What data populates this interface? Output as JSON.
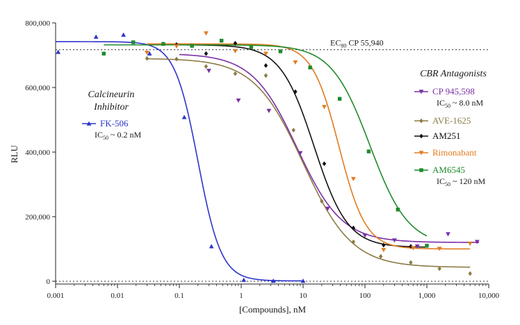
{
  "chart_data": {
    "type": "scatter",
    "xscale": "log",
    "xlabel": "[Compounds], nM",
    "ylabel": "RLU",
    "xlim": [
      0.001,
      10000
    ],
    "ylim": [
      0,
      800000
    ],
    "xticks": [
      {
        "value": 0.001,
        "label": "0.001"
      },
      {
        "value": 0.01,
        "label": "0.01"
      },
      {
        "value": 0.1,
        "label": "0.1"
      },
      {
        "value": 1,
        "label": "1"
      },
      {
        "value": 10,
        "label": "10"
      },
      {
        "value": 100,
        "label": "100"
      },
      {
        "value": 1000,
        "label": "1,000"
      },
      {
        "value": 10000,
        "label": "10,000"
      }
    ],
    "yticks": [
      {
        "value": 0,
        "label": "0"
      },
      {
        "value": 200000,
        "label": "200,000"
      },
      {
        "value": 400000,
        "label": "400,000"
      },
      {
        "value": 600000,
        "label": "600,000"
      },
      {
        "value": 800000,
        "label": "800,000"
      }
    ],
    "grid": false,
    "reference_lines": [
      {
        "y": 717000,
        "label_main": "EC",
        "label_sub": "80",
        "label_rest": " CP 55,940"
      },
      {
        "y": 0
      }
    ],
    "legend_groups": [
      {
        "title_lines": [
          "Calcineurin",
          "Inhibitor"
        ],
        "series": [
          "FK-506"
        ]
      },
      {
        "title_lines": [
          "CBR Antagonists"
        ],
        "series": [
          "CP 945,598",
          "AVE-1625",
          "AM251",
          "Rimonabant",
          "AM6545"
        ]
      }
    ],
    "series": [
      {
        "name": "FK-506",
        "color": "#2b35c9",
        "marker": "triangle-up",
        "ic50_note": {
          "prefix": "IC",
          "sub": "50",
          "text": " ~ 0.2 nM"
        },
        "fit": {
          "top": 742000,
          "bottom": 1000,
          "ec50": 0.2,
          "hill": 2.3,
          "xmin": 0.001,
          "xmax": 10
        },
        "x": [
          0.0011,
          0.0045,
          0.0125,
          0.033,
          0.12,
          0.33,
          1.1,
          3.3,
          10
        ],
        "y": [
          710000,
          757000,
          763000,
          705000,
          508000,
          108000,
          4000,
          1000,
          1000
        ]
      },
      {
        "name": "CP 945,598",
        "color": "#7b2fa6",
        "marker": "triangle-down",
        "ic50_note": {
          "prefix": "IC",
          "sub": "50",
          "text": " ~ 8.0 nM"
        },
        "fit": {
          "top": 705000,
          "bottom": 120000,
          "ec50": 8.0,
          "hill": 1.2,
          "xmin": 0.1,
          "xmax": 7000
        },
        "x": [
          0.3,
          0.9,
          2.8,
          9.0,
          25,
          100,
          300,
          700,
          2200,
          6500
        ],
        "y": [
          652000,
          560000,
          528000,
          397000,
          225000,
          142000,
          127000,
          108000,
          146000,
          122000
        ]
      },
      {
        "name": "AVE-1625",
        "color": "#8b7b45",
        "marker": "diamond",
        "fit": {
          "top": 690000,
          "bottom": 43000,
          "ec50": 10.0,
          "hill": 1.1,
          "xmin": 0.03,
          "xmax": 5000
        },
        "x": [
          0.03,
          0.09,
          0.27,
          0.8,
          2.5,
          7.0,
          20,
          65,
          180,
          550,
          1600,
          5000
        ],
        "y": [
          690000,
          688000,
          665000,
          643000,
          637000,
          468000,
          248000,
          122000,
          77000,
          58000,
          39000,
          24000
        ]
      },
      {
        "name": "AM251",
        "color": "#111111",
        "marker": "diamond",
        "fit": {
          "top": 732000,
          "bottom": 105000,
          "ec50": 15.0,
          "hill": 1.6,
          "xmin": 0.1,
          "xmax": 1000
        },
        "x": [
          0.09,
          0.27,
          0.8,
          2.5,
          7.5,
          22,
          65,
          200,
          550
        ],
        "y": [
          733000,
          705000,
          737000,
          668000,
          587000,
          364000,
          165000,
          112000,
          108000
        ]
      },
      {
        "name": "Rimonabant",
        "color": "#e07b1f",
        "marker": "triangle-down",
        "fit": {
          "top": 735000,
          "bottom": 100000,
          "ec50": 38.0,
          "hill": 2.0,
          "xmin": 0.03,
          "xmax": 5000
        },
        "x": [
          0.03,
          0.09,
          0.27,
          0.8,
          2.5,
          7.5,
          22,
          65,
          200,
          600,
          1600,
          5000
        ],
        "y": [
          708000,
          728000,
          768000,
          713000,
          705000,
          678000,
          540000,
          317000,
          97000,
          103000,
          101000,
          117000
        ]
      },
      {
        "name": "AM6545",
        "color": "#1f8a2c",
        "marker": "square",
        "ic50_note": {
          "prefix": "IC",
          "sub": "50",
          "text": " ~ 120 nM"
        },
        "fit": {
          "top": 732000,
          "bottom": 110000,
          "ec50": 120.0,
          "hill": 1.4,
          "xmin": 0.006,
          "xmax": 1000
        },
        "x": [
          0.006,
          0.018,
          0.055,
          0.16,
          0.48,
          1.45,
          4.3,
          13,
          39,
          115,
          340,
          1000
        ],
        "y": [
          705000,
          740000,
          735000,
          729000,
          745000,
          725000,
          712000,
          662000,
          565000,
          402000,
          222000,
          110000
        ]
      }
    ]
  }
}
